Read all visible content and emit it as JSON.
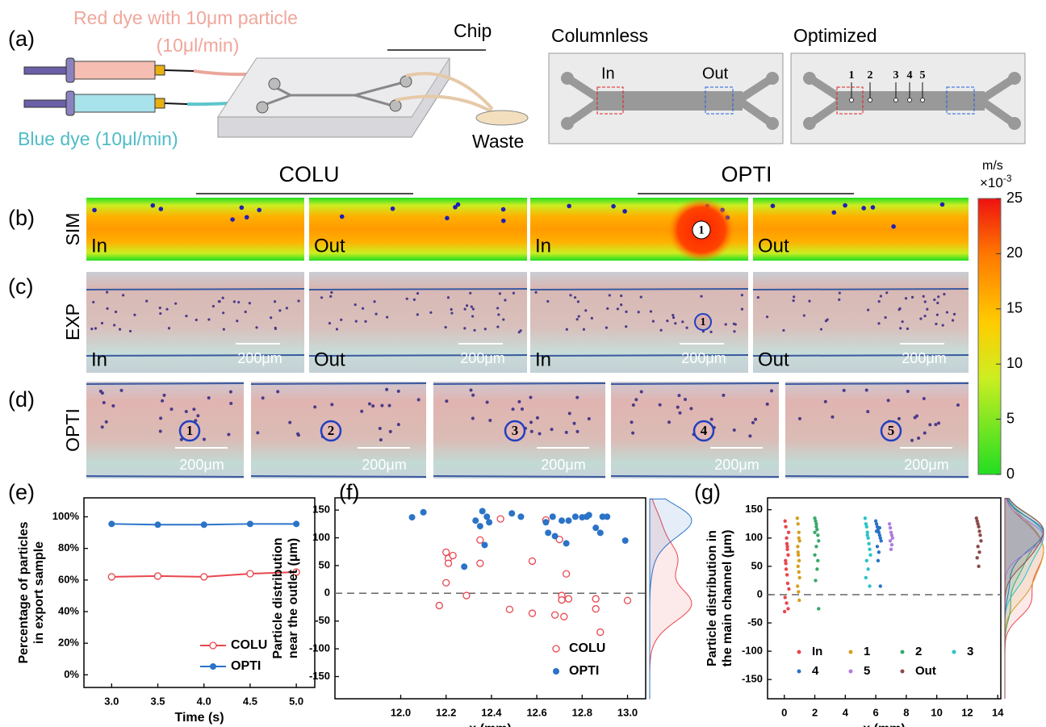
{
  "panel_a": {
    "label": "(a)",
    "red_dye": "Red dye with 10μm particle",
    "red_rate": "(10μl/min)",
    "blue_dye": "Blue dye (10μl/min)",
    "chip": "Chip",
    "waste": "Waste",
    "columnless": {
      "title": "Columnless",
      "in": "In",
      "out": "Out"
    },
    "optimized": {
      "title": "Optimized",
      "positions": [
        "1",
        "2",
        "3",
        "4",
        "5"
      ]
    }
  },
  "panel_b": {
    "label": "(b)",
    "groups": [
      "COLU",
      "OPTI"
    ],
    "row": "SIM",
    "images": [
      "In",
      "Out",
      "In",
      "Out"
    ],
    "marker": "1"
  },
  "colorbar": {
    "unit": "m/s",
    "multiplier": {
      "base": "×10",
      "exponent": "-3"
    },
    "lim": [
      0,
      25
    ],
    "ticks": [
      0,
      5,
      10,
      15,
      20,
      25
    ]
  },
  "panel_c": {
    "label": "(c)",
    "row": "EXP",
    "images": [
      "In",
      "Out",
      "In",
      "Out"
    ],
    "scale_bar": "200μm",
    "marker": "1"
  },
  "panel_d": {
    "label": "(d)",
    "row": "OPTI",
    "markers": [
      "1",
      "2",
      "3",
      "4",
      "5"
    ],
    "scale_bar": "200μm"
  },
  "chart_data": [
    {
      "type": "line",
      "panel_label": "(e)",
      "xlabel": "Time (s)",
      "ylabel": [
        "Percentage of particles",
        "in export sample"
      ],
      "x": [
        3.0,
        3.5,
        4.0,
        4.5,
        5.0
      ],
      "series": [
        {
          "name": "COLU",
          "color": "#e8474f",
          "marker": "open-circle",
          "values": [
            62,
            62.5,
            62,
            64,
            65
          ]
        },
        {
          "name": "OPTI",
          "color": "#2a73c7",
          "marker": "circle",
          "values": [
            95.5,
            95,
            95,
            95.5,
            95.5
          ]
        }
      ],
      "xlim": [
        2.7,
        5.2
      ],
      "ylim": [
        -8,
        112
      ],
      "xticks": [
        {
          "value": 3.0,
          "label": "3.0"
        },
        {
          "value": 3.5,
          "label": "3.5"
        },
        {
          "value": 4.0,
          "label": "4.0"
        },
        {
          "value": 4.5,
          "label": "4.5"
        },
        {
          "value": 5.0,
          "label": "5.0"
        }
      ],
      "yticks": [
        {
          "value": 0,
          "label": "0%"
        },
        {
          "value": 20,
          "label": "20%"
        },
        {
          "value": 40,
          "label": "40%"
        },
        {
          "value": 60,
          "label": "60%"
        },
        {
          "value": 80,
          "label": "80%"
        },
        {
          "value": 100,
          "label": "100%"
        }
      ],
      "legend": "lower right"
    },
    {
      "type": "scatter",
      "panel_label": "(f)",
      "xlabel": "x (mm)",
      "ylabel": [
        "Particle distribution",
        "near the outlet (μm)"
      ],
      "series": [
        {
          "name": "COLU",
          "color": "#e8474f",
          "marker": "open-circle",
          "x": [
            12.2,
            12.21,
            12.23,
            12.21,
            12.35,
            12.35,
            12.2,
            12.17,
            12.29,
            12.44,
            12.48,
            12.64,
            12.7,
            12.73,
            12.71,
            12.74,
            12.71,
            12.68,
            12.72,
            12.58,
            12.86,
            12.88,
            13.0,
            12.86,
            12.58
          ],
          "values": [
            74,
            63,
            68,
            54,
            96,
            54,
            19,
            -22,
            -4,
            134,
            -29,
            132,
            97,
            35,
            -4,
            -10,
            -12,
            -39,
            -42,
            -36,
            -10,
            -70,
            -13,
            -28,
            58
          ]
        },
        {
          "name": "OPTI",
          "color": "#2a73c7",
          "marker": "circle",
          "x": [
            12.05,
            12.1,
            12.33,
            12.36,
            12.35,
            12.39,
            12.38,
            12.37,
            12.28,
            12.49,
            12.53,
            12.64,
            12.65,
            12.68,
            12.67,
            12.71,
            12.73,
            12.77,
            12.8,
            12.82,
            12.86,
            12.88,
            12.89,
            12.91,
            12.99,
            12.83,
            12.74
          ],
          "values": [
            137,
            146,
            131,
            148,
            121,
            128,
            138,
            87,
            48,
            144,
            138,
            128,
            109,
            103,
            138,
            131,
            90,
            138,
            137,
            138,
            118,
            109,
            138,
            138,
            95,
            141,
            131
          ]
        }
      ],
      "xlim": [
        11.71,
        13.08
      ],
      "ylim": [
        -190,
        172
      ],
      "xticks": [
        {
          "value": 12.0,
          "label": "12.0"
        },
        {
          "value": 12.2,
          "label": "12.2"
        },
        {
          "value": 12.4,
          "label": "12.4"
        },
        {
          "value": 12.6,
          "label": "12.6"
        },
        {
          "value": 12.8,
          "label": "12.8"
        },
        {
          "value": 13.0,
          "label": "13.0"
        }
      ],
      "yticks": [
        -150,
        -100,
        -50,
        0,
        50,
        100,
        150
      ],
      "hline": 0,
      "marginal": true,
      "legend": "lower right"
    },
    {
      "type": "scatter",
      "panel_label": "(g)",
      "xlabel": "x (mm)",
      "ylabel": [
        "Particle distribution in",
        "the main channel (μm)"
      ],
      "series": [
        {
          "name": "In",
          "color": "#e8474f",
          "marker": "circle",
          "x": [
            0.05,
            0.1,
            0.15,
            0.2,
            0.25,
            0.08,
            0.12,
            0.18,
            0.22,
            0.3,
            0.05,
            0.15,
            0.25,
            0.1,
            0.2,
            0.28,
            0.02,
            0.17
          ],
          "values": [
            130,
            120,
            100,
            85,
            70,
            60,
            45,
            35,
            20,
            10,
            -5,
            -15,
            -25,
            55,
            80,
            110,
            -30,
            90
          ]
        },
        {
          "name": "1",
          "color": "#d4a020",
          "marker": "circle",
          "x": [
            0.85,
            0.9,
            0.95,
            1.0,
            0.88,
            0.92,
            0.97,
            0.9,
            0.95,
            1.0,
            0.87,
            0.93,
            0.98,
            0.9,
            0.95
          ],
          "values": [
            135,
            125,
            110,
            95,
            85,
            70,
            60,
            50,
            40,
            30,
            15,
            5,
            -10,
            75,
            100
          ]
        },
        {
          "name": "2",
          "color": "#3aa86a",
          "marker": "circle",
          "x": [
            2.0,
            2.05,
            2.1,
            2.15,
            2.2,
            2.25,
            2.1,
            2.0,
            2.2,
            2.15,
            2.05,
            2.25,
            2.1,
            2.0
          ],
          "values": [
            135,
            130,
            120,
            115,
            105,
            95,
            85,
            70,
            60,
            45,
            25,
            -25,
            125,
            110
          ]
        },
        {
          "name": "3",
          "color": "#29c4c9",
          "marker": "circle",
          "x": [
            5.3,
            5.35,
            5.4,
            5.45,
            5.5,
            5.55,
            5.6,
            5.65,
            5.4,
            5.5,
            5.35,
            5.6,
            5.45
          ],
          "values": [
            135,
            125,
            120,
            110,
            100,
            90,
            80,
            70,
            60,
            45,
            30,
            15,
            105
          ]
        },
        {
          "name": "4",
          "color": "#2a73c7",
          "marker": "circle",
          "x": [
            6.0,
            6.05,
            6.1,
            6.15,
            6.2,
            6.25,
            6.3,
            6.35,
            6.1,
            6.2,
            6.15,
            6.3,
            6.05,
            6.25
          ],
          "values": [
            130,
            125,
            120,
            115,
            110,
            105,
            100,
            95,
            85,
            75,
            60,
            15,
            112,
            118
          ]
        },
        {
          "name": "5",
          "color": "#b07ce0",
          "marker": "circle",
          "x": [
            6.9,
            6.95,
            7.0,
            7.05,
            7.1,
            6.95,
            7.05,
            7.0
          ],
          "values": [
            125,
            118,
            110,
            105,
            100,
            95,
            88,
            80
          ]
        },
        {
          "name": "Out",
          "color": "#8c4a4a",
          "marker": "circle",
          "x": [
            12.6,
            12.65,
            12.7,
            12.75,
            12.8,
            12.85,
            12.9,
            12.7,
            12.8,
            12.65,
            12.75
          ],
          "values": [
            135,
            130,
            125,
            120,
            112,
            105,
            95,
            85,
            75,
            65,
            50
          ]
        }
      ],
      "xlim": [
        -1.1,
        14.2
      ],
      "ylim": [
        -184,
        171
      ],
      "xticks": [
        0,
        2,
        4,
        6,
        8,
        10,
        12,
        14
      ],
      "yticks": [
        -150,
        -100,
        -50,
        0,
        50,
        100,
        150
      ],
      "hline": 0,
      "marginal": true,
      "legend": "lower center"
    }
  ]
}
